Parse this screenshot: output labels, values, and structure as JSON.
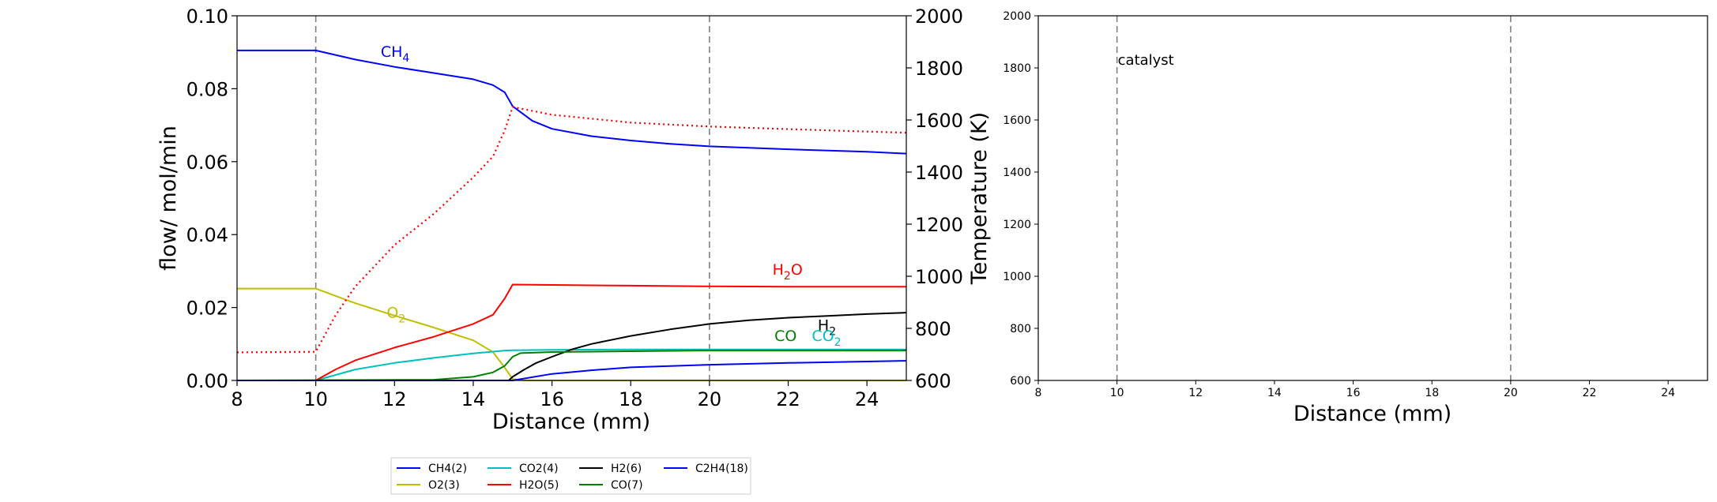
{
  "chart_data": [
    {
      "type": "line",
      "xlabel": "Distance (mm)",
      "ylabel": "flow/ mol/min",
      "y2label": "Temperature (K)",
      "xlim": [
        8,
        25
      ],
      "ylim": [
        0,
        0.1
      ],
      "y2lim": [
        600,
        2000
      ],
      "xticks": [
        8,
        10,
        12,
        14,
        16,
        18,
        20,
        22,
        24
      ],
      "yticks": [
        0.0,
        0.02,
        0.04,
        0.06,
        0.08,
        0.1
      ],
      "y2ticks": [
        600,
        800,
        1000,
        1200,
        1400,
        1600,
        1800,
        2000
      ],
      "catalyst_zone": [
        10,
        20
      ],
      "series": [
        {
          "name": "CH4(2)",
          "label": "CH4",
          "color": "#0000ff",
          "style": "solid",
          "x": [
            8,
            10,
            11,
            12,
            13,
            14,
            14.5,
            14.8,
            15,
            15.5,
            16,
            17,
            18,
            19,
            20,
            22,
            24,
            25
          ],
          "y": [
            0.0905,
            0.0905,
            0.088,
            0.086,
            0.0843,
            0.0826,
            0.081,
            0.079,
            0.0752,
            0.0712,
            0.069,
            0.067,
            0.0658,
            0.0649,
            0.0642,
            0.0634,
            0.0627,
            0.0622
          ]
        },
        {
          "name": "O2(3)",
          "label": "O2",
          "color": "#bfbf00",
          "style": "solid",
          "x": [
            8,
            10,
            11,
            12,
            13,
            14,
            14.5,
            14.8,
            15,
            15.3,
            25
          ],
          "y": [
            0.0252,
            0.0252,
            0.0212,
            0.0178,
            0.0145,
            0.011,
            0.0078,
            0.0035,
            0.0004,
            0.0,
            0.0
          ]
        },
        {
          "name": "CO2(4)",
          "label": "CO2",
          "color": "#00bfbf",
          "style": "solid",
          "x": [
            8,
            10,
            11,
            12,
            13,
            14,
            14.5,
            14.8,
            15,
            16,
            18,
            20,
            22,
            25
          ],
          "y": [
            0.0,
            0.0,
            0.003,
            0.0048,
            0.0062,
            0.0074,
            0.0079,
            0.0082,
            0.0083,
            0.0084,
            0.0085,
            0.0085,
            0.0085,
            0.0085
          ]
        },
        {
          "name": "H2O(5)",
          "label": "H2O",
          "color": "#ff0000",
          "style": "solid",
          "x": [
            8,
            10,
            10.5,
            11,
            12,
            13,
            14,
            14.5,
            14.8,
            15,
            16,
            18,
            20,
            22,
            25
          ],
          "y": [
            0.0,
            0.0,
            0.003,
            0.0055,
            0.009,
            0.012,
            0.0155,
            0.018,
            0.0225,
            0.0263,
            0.0262,
            0.026,
            0.0258,
            0.0257,
            0.0257
          ]
        },
        {
          "name": "H2(6)",
          "label": "H2",
          "color": "#000000",
          "style": "solid",
          "x": [
            8,
            14.9,
            15,
            15.3,
            15.6,
            16,
            16.5,
            17,
            18,
            19,
            20,
            21,
            22,
            23,
            24,
            25
          ],
          "y": [
            0.0,
            0.0,
            0.001,
            0.003,
            0.0048,
            0.0065,
            0.0085,
            0.01,
            0.0122,
            0.014,
            0.0155,
            0.0165,
            0.0172,
            0.0177,
            0.0182,
            0.0186
          ]
        },
        {
          "name": "CO(7)",
          "label": "CO",
          "color": "#008000",
          "style": "solid",
          "x": [
            8,
            13,
            14,
            14.5,
            14.8,
            15,
            15.2,
            16,
            18,
            20,
            22,
            25
          ],
          "y": [
            0.0,
            0.0002,
            0.001,
            0.0022,
            0.004,
            0.0065,
            0.0075,
            0.0078,
            0.008,
            0.0082,
            0.0082,
            0.0082
          ]
        },
        {
          "name": "C2H4(18)",
          "label": "",
          "color": "#0000ff",
          "style": "solid",
          "x": [
            8,
            15,
            16,
            17,
            18,
            20,
            22,
            24,
            25
          ],
          "y": [
            0.0,
            0.0,
            0.0018,
            0.0028,
            0.0036,
            0.0043,
            0.0048,
            0.0052,
            0.0054
          ]
        },
        {
          "name": "Temperature",
          "label": "",
          "color": "#ff0000",
          "style": "dotted",
          "axis": "y2",
          "x": [
            8,
            10,
            10.5,
            11,
            12,
            13,
            14,
            14.5,
            14.8,
            15,
            16,
            18,
            20,
            22,
            25
          ],
          "y": [
            708,
            710,
            850,
            960,
            1120,
            1240,
            1380,
            1460,
            1560,
            1650,
            1620,
            1590,
            1575,
            1565,
            1551
          ]
        }
      ],
      "annotations": [
        {
          "text": "CH",
          "sub": "4",
          "x": 11.65,
          "y": 0.0887,
          "color": "#0000ff"
        },
        {
          "text": "O",
          "sub": "2",
          "x": 11.8,
          "y": 0.0172,
          "color": "#bfbf00"
        },
        {
          "text": "H",
          "sub": "2",
          "after": "O",
          "x": 21.6,
          "y": 0.029,
          "color": "#ff0000"
        },
        {
          "text": "H",
          "sub": "2",
          "x": 22.75,
          "y": 0.0137,
          "color": "#000000"
        },
        {
          "text": "CO",
          "x": 21.65,
          "y": 0.0108,
          "color": "#008000"
        },
        {
          "text": "CO",
          "sub": "2",
          "x": 22.6,
          "y": 0.0108,
          "color": "#00bfbf"
        }
      ]
    },
    {
      "type": "line",
      "xlabel": "Distance (mm)",
      "ylabel": "",
      "xlim": [
        8,
        25
      ],
      "ylim": [
        600,
        2000
      ],
      "xticks": [
        8,
        10,
        12,
        14,
        16,
        18,
        20,
        22,
        24
      ],
      "yticks": [
        600,
        800,
        1000,
        1200,
        1400,
        1600,
        1800,
        2000
      ],
      "catalyst_zone": [
        10,
        20
      ],
      "annotations": [
        {
          "text": "catalyst",
          "x": 10.0,
          "y": 1830,
          "color": "#000000"
        }
      ],
      "series": []
    }
  ],
  "legend": {
    "location": "below-left",
    "entries": [
      {
        "label": "CH4(2)",
        "color": "#0000ff"
      },
      {
        "label": "O2(3)",
        "color": "#bfbf00"
      },
      {
        "label": "CO2(4)",
        "color": "#00bfbf"
      },
      {
        "label": "H2O(5)",
        "color": "#ff0000"
      },
      {
        "label": "H2(6)",
        "color": "#000000"
      },
      {
        "label": "CO(7)",
        "color": "#008000"
      },
      {
        "label": "C2H4(18)",
        "color": "#0000ff"
      }
    ]
  }
}
